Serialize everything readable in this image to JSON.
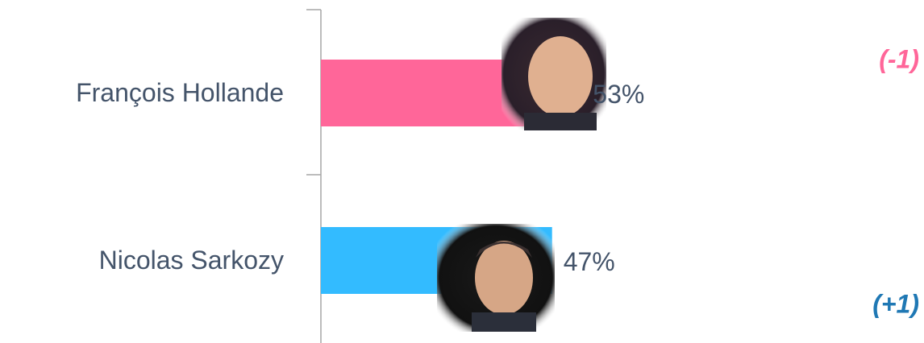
{
  "chart_data": {
    "type": "bar",
    "orientation": "horizontal",
    "categories": [
      "François Hollande",
      "Nicolas Sarkozy"
    ],
    "values": [
      53,
      47
    ],
    "value_labels": [
      "53%",
      "47%"
    ],
    "colors": [
      "#ff6699",
      "#33bbff"
    ],
    "annotations": [
      {
        "text": "(-1)",
        "color": "#ff6699"
      },
      {
        "text": "(+1)",
        "color": "#1f78b4"
      }
    ]
  }
}
